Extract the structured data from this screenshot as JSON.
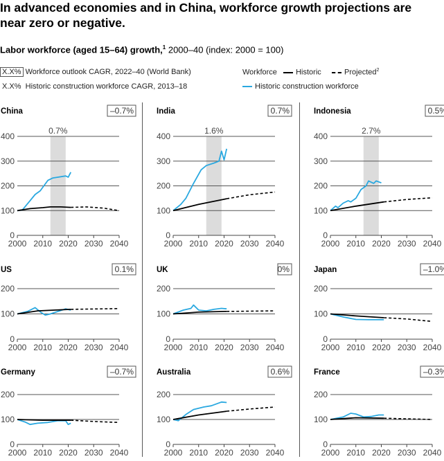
{
  "title": "In advanced economies and in China, workforce growth projections are near zero or negative.",
  "subtitle_bold": "Labor workforce (aged 15–64) growth,",
  "subtitle_sup": "1",
  "subtitle_rest": " 2000–40 (index: 2000 = 100)",
  "legend": {
    "box_sample": "X.X%",
    "box_label": "Workforce outlook CAGR, 2022–40 (World Bank)",
    "plain_sample": "X.X%",
    "plain_label": "Historic construction workforce CAGR, 2013–18",
    "workforce": "Workforce",
    "historic": "Historic",
    "projected": "Projected",
    "projected_sup": "2",
    "construction": "Historic construction workforce"
  },
  "colors": {
    "historic": "#000000",
    "construction": "#29a8e0",
    "band": "#dcdcdc",
    "grid": "#555555"
  },
  "chart_data": [
    {
      "type": "line",
      "name": "China",
      "outlook": "–0.7%",
      "band_label": "0.7%",
      "ylim": [
        0,
        400
      ],
      "yticks": [
        0,
        100,
        200,
        300,
        400
      ],
      "xticks": [
        2000,
        2010,
        2020,
        2030,
        2040
      ],
      "historic": [
        [
          2000,
          100
        ],
        [
          2005,
          108
        ],
        [
          2010,
          112
        ],
        [
          2013,
          115
        ],
        [
          2017,
          115
        ],
        [
          2021,
          113
        ]
      ],
      "projected": [
        [
          2021,
          113
        ],
        [
          2027,
          115
        ],
        [
          2034,
          110
        ],
        [
          2040,
          100
        ]
      ],
      "construction": [
        [
          2000,
          100
        ],
        [
          2002,
          103
        ],
        [
          2005,
          140
        ],
        [
          2007,
          165
        ],
        [
          2009,
          180
        ],
        [
          2012,
          222
        ],
        [
          2014,
          232
        ],
        [
          2019,
          240
        ],
        [
          2020,
          235
        ],
        [
          2021,
          255
        ]
      ]
    },
    {
      "type": "line",
      "name": "India",
      "outlook": "0.7%",
      "band_label": "1.6%",
      "ylim": [
        0,
        400
      ],
      "yticks": [
        0,
        100,
        200,
        300,
        400
      ],
      "xticks": [
        2000,
        2010,
        2020,
        2030,
        2040
      ],
      "historic": [
        [
          2000,
          100
        ],
        [
          2010,
          125
        ],
        [
          2021,
          148
        ]
      ],
      "projected": [
        [
          2021,
          148
        ],
        [
          2030,
          164
        ],
        [
          2040,
          175
        ]
      ],
      "construction": [
        [
          2000,
          100
        ],
        [
          2003,
          125
        ],
        [
          2005,
          150
        ],
        [
          2008,
          210
        ],
        [
          2011,
          265
        ],
        [
          2013,
          282
        ],
        [
          2016,
          292
        ],
        [
          2018,
          300
        ],
        [
          2019,
          340
        ],
        [
          2020,
          305
        ],
        [
          2021,
          350
        ]
      ]
    },
    {
      "type": "line",
      "name": "Indonesia",
      "outlook": "0.5%",
      "band_label": "2.7%",
      "ylim": [
        0,
        400
      ],
      "yticks": [
        0,
        100,
        200,
        300,
        400
      ],
      "xticks": [
        2000,
        2010,
        2020,
        2030,
        2040
      ],
      "historic": [
        [
          2000,
          100
        ],
        [
          2010,
          118
        ],
        [
          2021,
          135
        ]
      ],
      "projected": [
        [
          2021,
          135
        ],
        [
          2030,
          145
        ],
        [
          2040,
          152
        ]
      ],
      "construction": [
        [
          2000,
          100
        ],
        [
          2002,
          118
        ],
        [
          2003,
          112
        ],
        [
          2005,
          130
        ],
        [
          2007,
          140
        ],
        [
          2008,
          135
        ],
        [
          2010,
          150
        ],
        [
          2012,
          185
        ],
        [
          2014,
          200
        ],
        [
          2015,
          220
        ],
        [
          2017,
          210
        ],
        [
          2018,
          220
        ],
        [
          2020,
          212
        ]
      ]
    },
    {
      "type": "line",
      "name": "US",
      "outlook": "0.1%",
      "ylim": [
        0,
        200
      ],
      "yticks": [
        0,
        100,
        200
      ],
      "xticks": [
        2000,
        2010,
        2020,
        2030,
        2040
      ],
      "historic": [
        [
          2000,
          100
        ],
        [
          2008,
          112
        ],
        [
          2021,
          118
        ]
      ],
      "projected": [
        [
          2021,
          118
        ],
        [
          2040,
          121
        ]
      ],
      "construction": [
        [
          2000,
          100
        ],
        [
          2004,
          110
        ],
        [
          2007,
          125
        ],
        [
          2009,
          108
        ],
        [
          2011,
          95
        ],
        [
          2013,
          100
        ],
        [
          2016,
          110
        ],
        [
          2019,
          120
        ],
        [
          2021,
          115
        ]
      ]
    },
    {
      "type": "line",
      "name": "UK",
      "outlook": "0%",
      "ylim": [
        0,
        200
      ],
      "yticks": [
        0,
        100,
        200
      ],
      "xticks": [
        2000,
        2010,
        2020,
        2030,
        2040
      ],
      "historic": [
        [
          2000,
          100
        ],
        [
          2010,
          107
        ],
        [
          2021,
          110
        ]
      ],
      "projected": [
        [
          2021,
          110
        ],
        [
          2040,
          112
        ]
      ],
      "construction": [
        [
          2000,
          100
        ],
        [
          2004,
          115
        ],
        [
          2007,
          122
        ],
        [
          2008,
          135
        ],
        [
          2010,
          115
        ],
        [
          2013,
          112
        ],
        [
          2016,
          118
        ],
        [
          2019,
          122
        ],
        [
          2021,
          120
        ]
      ]
    },
    {
      "type": "line",
      "name": "Japan",
      "outlook": "–1.0%",
      "ylim": [
        0,
        200
      ],
      "yticks": [
        0,
        100,
        200
      ],
      "xticks": [
        2000,
        2010,
        2020,
        2030,
        2040
      ],
      "historic": [
        [
          2000,
          100
        ],
        [
          2010,
          92
        ],
        [
          2021,
          85
        ]
      ],
      "projected": [
        [
          2021,
          85
        ],
        [
          2030,
          80
        ],
        [
          2040,
          70
        ]
      ],
      "construction": [
        [
          2000,
          100
        ],
        [
          2005,
          88
        ],
        [
          2010,
          78
        ],
        [
          2015,
          77
        ],
        [
          2021,
          77
        ]
      ]
    },
    {
      "type": "line",
      "name": "Germany",
      "outlook": "–0.7%",
      "ylim": [
        0,
        200
      ],
      "yticks": [
        0,
        100,
        200
      ],
      "xticks": [
        2000,
        2010,
        2020,
        2030,
        2040
      ],
      "historic": [
        [
          2000,
          100
        ],
        [
          2010,
          97
        ],
        [
          2021,
          97
        ]
      ],
      "projected": [
        [
          2021,
          97
        ],
        [
          2030,
          92
        ],
        [
          2040,
          88
        ]
      ],
      "construction": [
        [
          2000,
          100
        ],
        [
          2003,
          90
        ],
        [
          2005,
          80
        ],
        [
          2008,
          85
        ],
        [
          2012,
          88
        ],
        [
          2016,
          95
        ],
        [
          2019,
          95
        ],
        [
          2020,
          80
        ],
        [
          2021,
          85
        ]
      ]
    },
    {
      "type": "line",
      "name": "Australia",
      "outlook": "0.6%",
      "ylim": [
        0,
        200
      ],
      "yticks": [
        0,
        100,
        200
      ],
      "xticks": [
        2000,
        2010,
        2020,
        2030,
        2040
      ],
      "historic": [
        [
          2000,
          100
        ],
        [
          2010,
          118
        ],
        [
          2021,
          133
        ]
      ],
      "projected": [
        [
          2021,
          133
        ],
        [
          2030,
          142
        ],
        [
          2040,
          150
        ]
      ],
      "construction": [
        [
          2000,
          100
        ],
        [
          2002,
          95
        ],
        [
          2005,
          120
        ],
        [
          2008,
          140
        ],
        [
          2012,
          150
        ],
        [
          2015,
          155
        ],
        [
          2019,
          170
        ],
        [
          2021,
          168
        ]
      ]
    },
    {
      "type": "line",
      "name": "France",
      "outlook": "–0.3%",
      "ylim": [
        0,
        200
      ],
      "yticks": [
        0,
        100,
        200
      ],
      "xticks": [
        2000,
        2010,
        2020,
        2030,
        2040
      ],
      "historic": [
        [
          2000,
          100
        ],
        [
          2010,
          107
        ],
        [
          2021,
          105
        ]
      ],
      "projected": [
        [
          2021,
          105
        ],
        [
          2040,
          100
        ]
      ],
      "construction": [
        [
          2000,
          100
        ],
        [
          2005,
          110
        ],
        [
          2008,
          125
        ],
        [
          2010,
          122
        ],
        [
          2013,
          110
        ],
        [
          2016,
          112
        ],
        [
          2019,
          118
        ],
        [
          2021,
          118
        ]
      ]
    }
  ]
}
